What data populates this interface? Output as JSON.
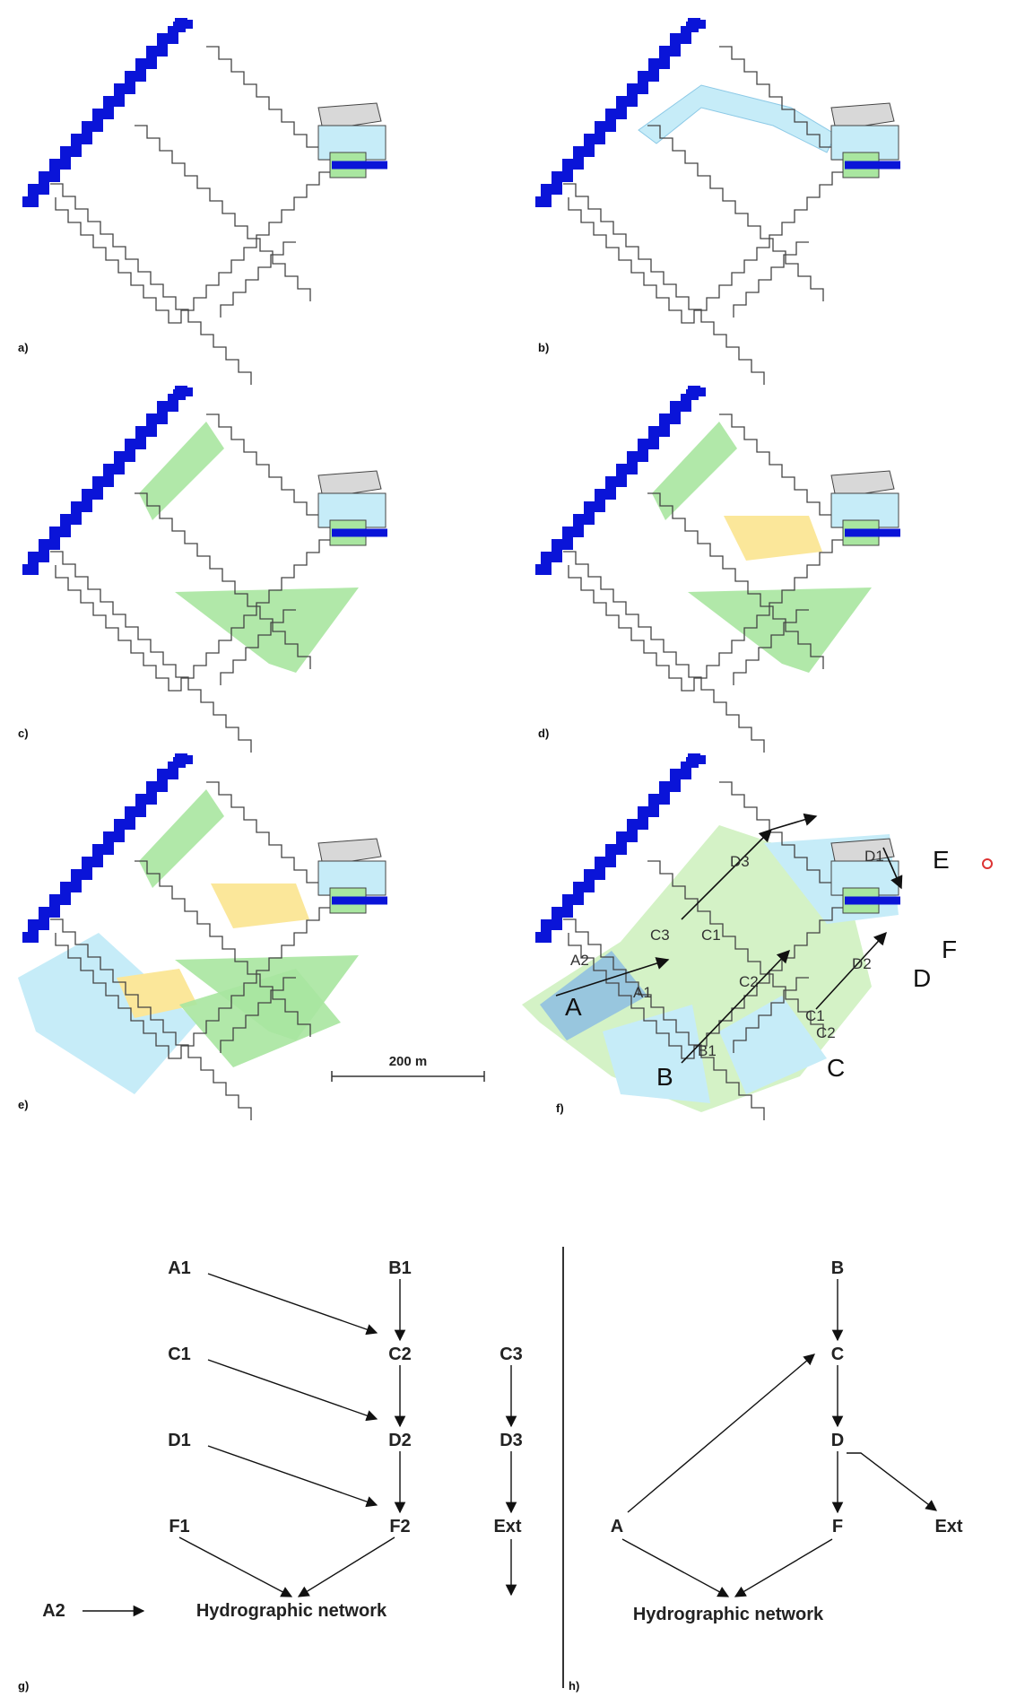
{
  "panels": {
    "a": "a)",
    "b": "b)",
    "c": "c)",
    "d": "d)",
    "e": "e)",
    "f": "f)",
    "g": "g)",
    "h": "h)"
  },
  "scale_bar": "200 m",
  "map_f_labels": {
    "A": "A",
    "B": "B",
    "C": "C",
    "D": "D",
    "E": "E",
    "F": "F",
    "A1": "A1",
    "A2": "A2",
    "B1": "B1",
    "C1a": "C1",
    "C1b": "C1",
    "C2a": "C2",
    "C2b": "C2",
    "C3": "C3",
    "D1": "D1",
    "D2": "D2",
    "D3": "D3"
  },
  "graph_g": {
    "A1": "A1",
    "B1": "B1",
    "C1": "C1",
    "C2": "C2",
    "C3": "C3",
    "D1": "D1",
    "D2": "D2",
    "D3": "D3",
    "F1": "F1",
    "F2": "F2",
    "Ext": "Ext",
    "A2": "A2",
    "network": "Hydrographic network"
  },
  "graph_h": {
    "B": "B",
    "C": "C",
    "D": "D",
    "A": "A",
    "F": "F",
    "Ext": "Ext",
    "network": "Hydrographic network"
  },
  "colors": {
    "river": "#0a14d8",
    "boundary": "#444444",
    "light_blue": "#c6ecf8",
    "mid_blue": "#7fb3e8",
    "dark_blue": "#5566d8",
    "green": "#a9e6a0",
    "light_green": "#d4f2c6",
    "yellow": "#fbe79a",
    "grey": "#d8d8d8"
  }
}
